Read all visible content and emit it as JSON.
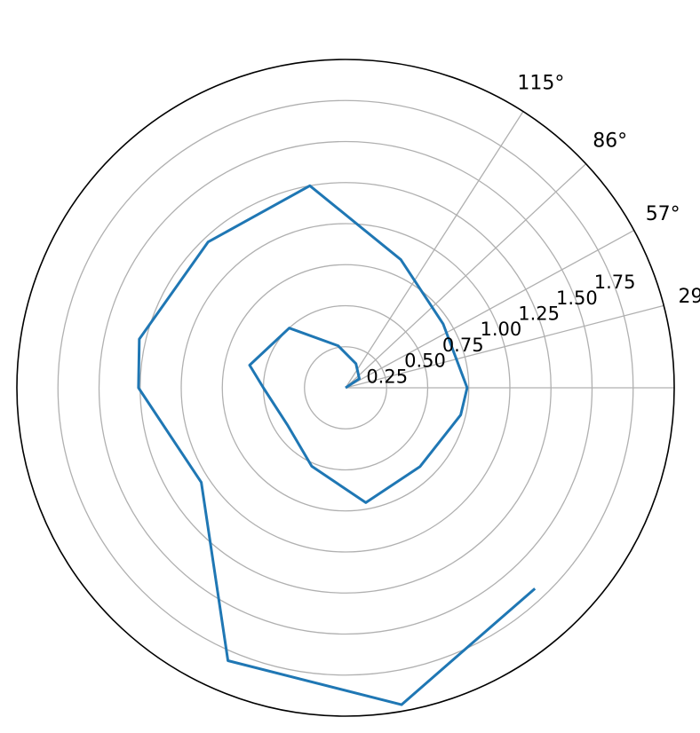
{
  "chart_data": {
    "type": "line",
    "projection": "polar",
    "title": "",
    "angle_unit": "degrees",
    "angular_ticks": [
      {
        "label": "29°",
        "value": 14.5
      },
      {
        "label": "57°",
        "value": 28.65
      },
      {
        "label": "86°",
        "value": 43.0
      },
      {
        "label": "115°",
        "value": 57.3
      }
    ],
    "radial_ticks": [
      {
        "label": "0.25",
        "value": 0.25
      },
      {
        "label": "0.50",
        "value": 0.5
      },
      {
        "label": "0.75",
        "value": 0.75
      },
      {
        "label": "1.00",
        "value": 1.0
      },
      {
        "label": "1.25",
        "value": 1.25
      },
      {
        "label": "1.50",
        "value": 1.5
      },
      {
        "label": "1.75",
        "value": 1.75
      },
      {
        "label": "",
        "value": 2.0
      }
    ],
    "radial_label_position_deg": 22.5,
    "rlim": [
      0,
      2.0
    ],
    "grid": true,
    "series": [
      {
        "color": "#1f77b4",
        "points": [
          {
            "theta": 0.0,
            "r": 0.0
          },
          {
            "theta": 33.3,
            "r": 0.1
          },
          {
            "theta": 66.7,
            "r": 0.16
          },
          {
            "theta": 100.0,
            "r": 0.26
          },
          {
            "theta": 133.3,
            "r": 0.5
          },
          {
            "theta": 166.7,
            "r": 0.6
          },
          {
            "theta": 180.0,
            "r": 0.5
          },
          {
            "theta": 213.3,
            "r": 0.42
          },
          {
            "theta": 246.7,
            "r": 0.52
          },
          {
            "theta": 280.0,
            "r": 0.71
          },
          {
            "theta": 313.3,
            "r": 0.66
          },
          {
            "theta": 346.7,
            "r": 0.72
          },
          {
            "theta": 360.0,
            "r": 0.74
          },
          {
            "theta": 393.3,
            "r": 0.71
          },
          {
            "theta": 426.7,
            "r": 0.85
          },
          {
            "theta": 460.0,
            "r": 1.25
          },
          {
            "theta": 493.3,
            "r": 1.22
          },
          {
            "theta": 526.7,
            "r": 1.29
          },
          {
            "theta": 540.0,
            "r": 1.26
          },
          {
            "theta": 573.3,
            "r": 1.05
          },
          {
            "theta": 606.7,
            "r": 1.81
          },
          {
            "theta": 640.0,
            "r": 1.96
          },
          {
            "theta": 673.3,
            "r": 1.68
          }
        ]
      }
    ]
  }
}
